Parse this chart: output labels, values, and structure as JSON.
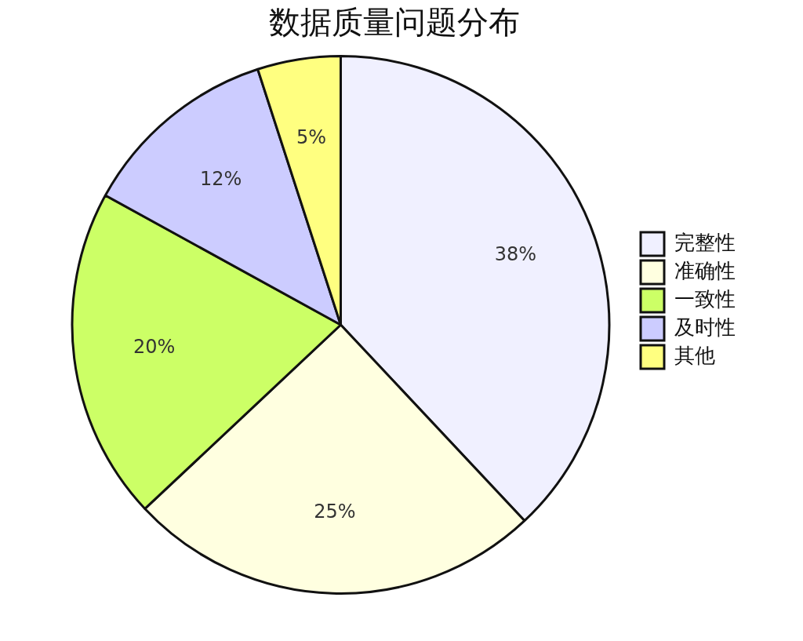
{
  "chart_data": {
    "type": "pie",
    "title": "数据质量问题分布",
    "categories": [
      "完整性",
      "准确性",
      "一致性",
      "及时性",
      "其他"
    ],
    "values": [
      38,
      25,
      20,
      12,
      5
    ],
    "colors": [
      "#f0f0ff",
      "#ffffe0",
      "#ccff66",
      "#ccccff",
      "#ffff80"
    ],
    "value_labels": [
      "38%",
      "25%",
      "20%",
      "12%",
      "5%"
    ],
    "legend": "right"
  }
}
